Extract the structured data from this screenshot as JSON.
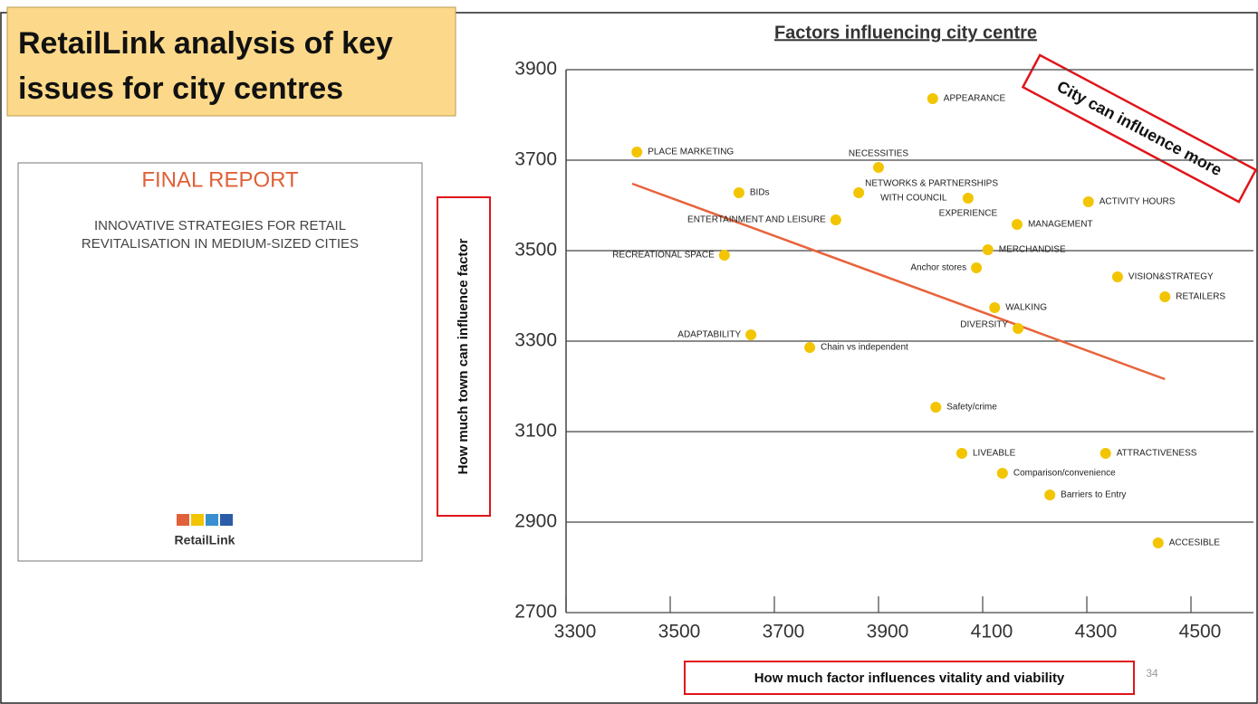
{
  "slide": {
    "title_lines": [
      "RetailLink analysis of key",
      "issues for city centres"
    ],
    "report": {
      "heading": "FINAL REPORT",
      "subtitle_lines": [
        "INNOVATIVE STRATEGIES FOR RETAIL",
        "REVITALISATION IN MEDIUM-SIZED CITIES"
      ],
      "logo": "RetailLink"
    },
    "page_number": 34
  },
  "chart_data": {
    "type": "scatter",
    "title": "Factors influencing city centre",
    "xlabel": "How much factor influences vitality and viability",
    "ylabel": "How much town can influence factor",
    "annotation": "City can influence more",
    "color": "#f2c500",
    "labels": [
      "APPEARANCE",
      "PLACE MARKETING",
      "NECESSITIES",
      [
        "NETWORKS & PARTNERSHIPS",
        "WITH COUNCIL"
      ],
      "EXPERIENCE",
      "BIDs",
      "ACTIVITY HOURS",
      "ENTERTAINMENT AND LEISURE",
      "MANAGEMENT",
      "MERCHANDISE",
      "RECREATIONAL SPACE",
      "Anchor stores",
      "VISION&STRATEGY",
      "RETAILERS",
      "WALKING",
      "DIVERSITY",
      "ADAPTABILITY",
      "Chain vs independent",
      "Safety/crime",
      "LIVEABLE",
      "ATTRACTIVENESS",
      "Comparison/convenience",
      "Barriers to Entry",
      "ACCESIBLE"
    ],
    "x": [
      4004,
      3436,
      3900,
      3862,
      4072,
      3632,
      4303,
      3818,
      4166,
      4110,
      3604,
      4088,
      4359,
      4450,
      4123,
      4168,
      3655,
      3768,
      4010,
      4060,
      4336,
      4138,
      4229,
      4437
    ],
    "values": [
      3836,
      3718,
      3684,
      3628,
      3616,
      3628,
      3608,
      3568,
      3558,
      3502,
      3490,
      3462,
      3442,
      3398,
      3374,
      3328,
      3314,
      3286,
      3154,
      3052,
      3052,
      3008,
      2960,
      2854
    ],
    "trendline": {
      "x": [
        3427,
        4450
      ],
      "y": [
        3648,
        3216
      ],
      "color": "#e8643c"
    },
    "xlim": [
      3300,
      4620
    ],
    "ylim": [
      2700,
      3900
    ],
    "xticks": [
      3300,
      3500,
      3700,
      3900,
      4100,
      4300,
      4500
    ],
    "yticks": [
      2700,
      2900,
      3100,
      3300,
      3500,
      3700,
      3900
    ],
    "grid": true
  }
}
